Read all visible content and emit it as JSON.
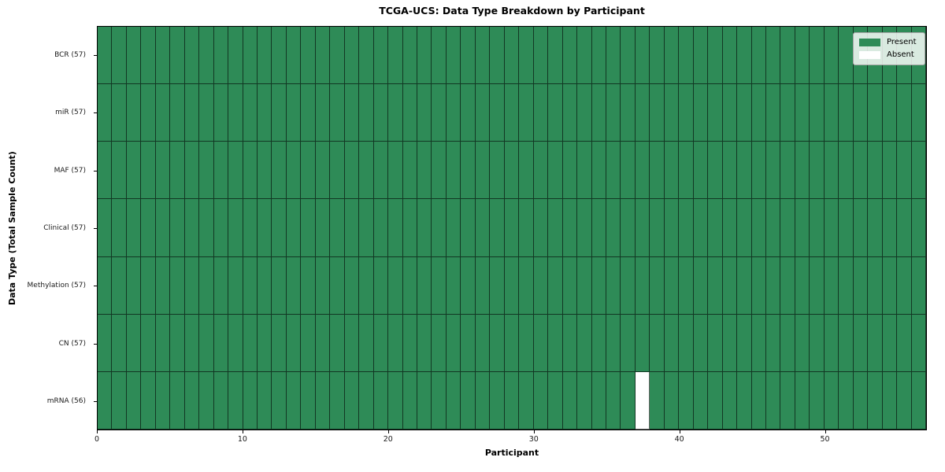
{
  "chart_data": {
    "type": "heatmap",
    "title": "TCGA-UCS: Data Type Breakdown by Participant",
    "xlabel": "Participant",
    "ylabel": "Data Type (Total Sample Count)",
    "n_participants": 57,
    "x_ticks": [
      0,
      10,
      20,
      30,
      40,
      50
    ],
    "rows": [
      {
        "label": "BCR (57)",
        "total": 57,
        "absent": []
      },
      {
        "label": "miR (57)",
        "total": 57,
        "absent": []
      },
      {
        "label": "MAF (57)",
        "total": 57,
        "absent": []
      },
      {
        "label": "Clinical (57)",
        "total": 57,
        "absent": []
      },
      {
        "label": "Methylation (57)",
        "total": 57,
        "absent": []
      },
      {
        "label": "CN (57)",
        "total": 57,
        "absent": []
      },
      {
        "label": "mRNA (56)",
        "total": 56,
        "absent": [
          37
        ]
      }
    ],
    "legend": [
      {
        "label": "Present",
        "color": "#2e8b57"
      },
      {
        "label": "Absent",
        "color": "#ffffff"
      }
    ],
    "colors": {
      "present": "#2e8b57",
      "absent": "#ffffff",
      "cell_edge": "rgba(0,0,0,0.60)",
      "spine": "#000000"
    }
  }
}
